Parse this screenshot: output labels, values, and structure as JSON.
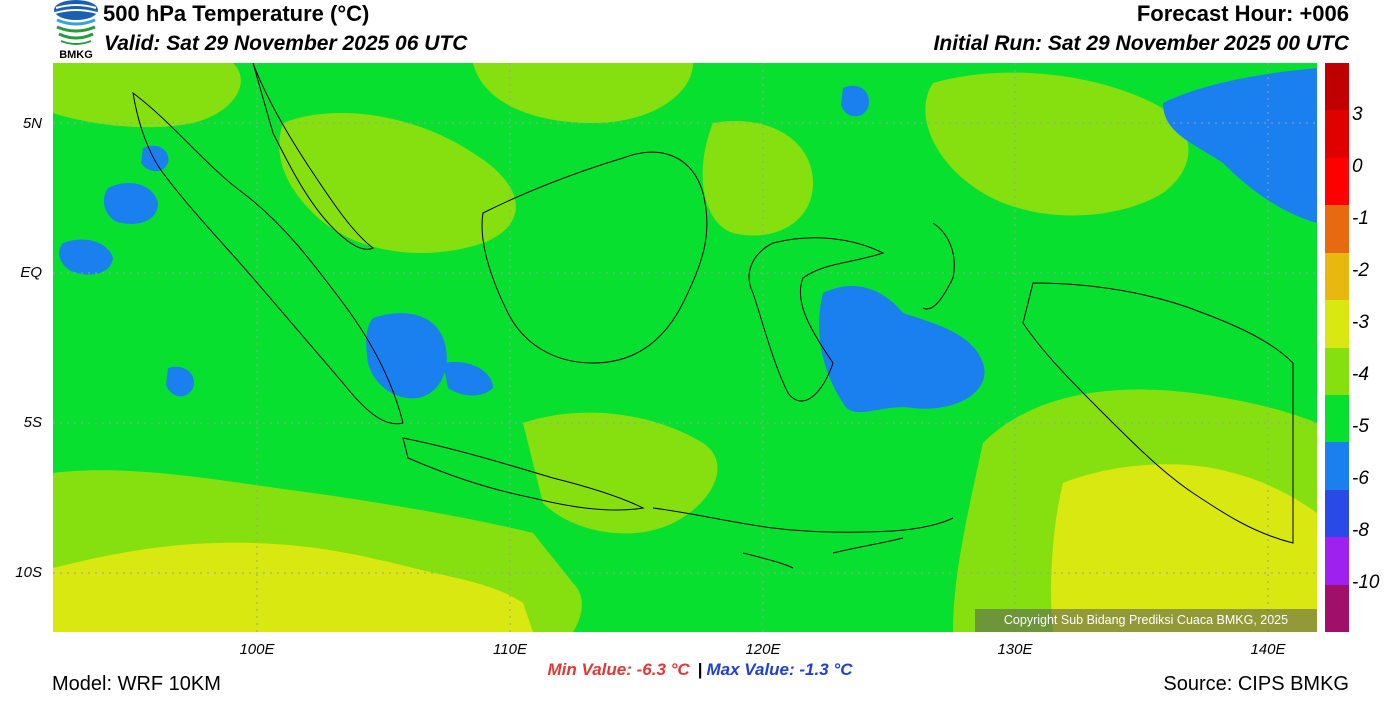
{
  "header": {
    "title": "500 hPa Temperature (°C)",
    "valid": "Valid: Sat 29 November 2025 06 UTC",
    "forecast_hour": "Forecast Hour: +006",
    "initial_run": "Initial Run: Sat 29 November 2025 00 UTC",
    "logo_text": "BMKG"
  },
  "map": {
    "lat_labels": [
      "5N",
      "EQ",
      "5S",
      "10S"
    ],
    "lon_labels": [
      "100E",
      "110E",
      "120E",
      "130E",
      "140E"
    ],
    "copyright": "Copyright Sub Bidang Prediksi Cuaca BMKG, 2025"
  },
  "colorbar": {
    "labels": [
      "3",
      "0",
      "-1",
      "-2",
      "-3",
      "-4",
      "-5",
      "-6",
      "-8",
      "-10"
    ],
    "colors": [
      "#c00000",
      "#e00000",
      "#ff0000",
      "#e86a10",
      "#e8b810",
      "#d8e810",
      "#86e010",
      "#08e030",
      "#1a80f0",
      "#2a4ae8",
      "#a020f0",
      "#a0106a"
    ]
  },
  "stats": {
    "min": "Min Value: -6.3 °C",
    "separator": "|",
    "max": "Max Value: -1.3 °C"
  },
  "footer": {
    "model": "Model: WRF 10KM",
    "source": "Source: CIPS BMKG"
  },
  "palette": {
    "green": "#08e030",
    "light_green": "#86e010",
    "yellow": "#d8e810",
    "blue": "#1a80f0",
    "coast": "#000000"
  }
}
